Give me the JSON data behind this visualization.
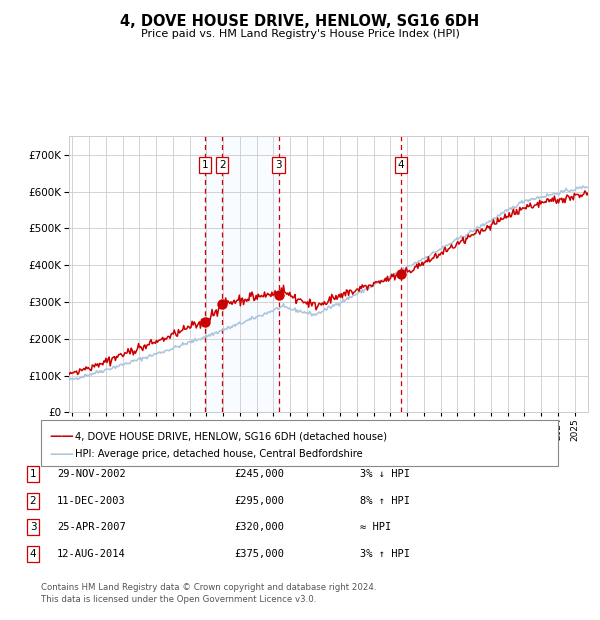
{
  "title": "4, DOVE HOUSE DRIVE, HENLOW, SG16 6DH",
  "subtitle": "Price paid vs. HM Land Registry's House Price Index (HPI)",
  "footer": "Contains HM Land Registry data © Crown copyright and database right 2024.\nThis data is licensed under the Open Government Licence v3.0.",
  "legend_line1": "4, DOVE HOUSE DRIVE, HENLOW, SG16 6DH (detached house)",
  "legend_line2": "HPI: Average price, detached house, Central Bedfordshire",
  "transactions": [
    {
      "num": 1,
      "date": "29-NOV-2002",
      "price": 245000,
      "rel": "3% ↓ HPI",
      "year": 2002.91
    },
    {
      "num": 2,
      "date": "11-DEC-2003",
      "price": 295000,
      "rel": "8% ↑ HPI",
      "year": 2003.95
    },
    {
      "num": 3,
      "date": "25-APR-2007",
      "price": 320000,
      "rel": "≈ HPI",
      "year": 2007.32
    },
    {
      "num": 4,
      "date": "12-AUG-2014",
      "price": 375000,
      "rel": "3% ↑ HPI",
      "year": 2014.62
    }
  ],
  "hpi_line_color": "#aac4dd",
  "price_line_color": "#cc0000",
  "dot_color": "#cc0000",
  "vline_color": "#cc0000",
  "shade_color": "#ddeeff",
  "background_color": "#ffffff",
  "grid_color": "#cccccc",
  "ylim": [
    0,
    750000
  ],
  "yticks": [
    0,
    100000,
    200000,
    300000,
    400000,
    500000,
    600000,
    700000
  ],
  "xlim_start": 1994.8,
  "xlim_end": 2025.8
}
